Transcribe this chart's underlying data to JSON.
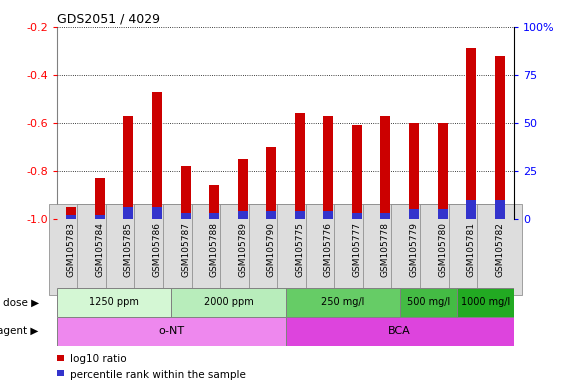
{
  "title": "GDS2051 / 4029",
  "samples": [
    "GSM105783",
    "GSM105784",
    "GSM105785",
    "GSM105786",
    "GSM105787",
    "GSM105788",
    "GSM105789",
    "GSM105790",
    "GSM105775",
    "GSM105776",
    "GSM105777",
    "GSM105778",
    "GSM105779",
    "GSM105780",
    "GSM105781",
    "GSM105782"
  ],
  "log10_ratio": [
    -0.95,
    -0.83,
    -0.57,
    -0.47,
    -0.78,
    -0.86,
    -0.75,
    -0.7,
    -0.56,
    -0.57,
    -0.61,
    -0.57,
    -0.6,
    -0.6,
    -0.29,
    -0.32
  ],
  "percentile_rank": [
    2,
    2,
    6,
    6,
    3,
    3,
    4,
    4,
    4,
    4,
    3,
    3,
    5,
    5,
    10,
    10
  ],
  "bar_color": "#cc0000",
  "percentile_color": "#3333cc",
  "ylim_left": [
    -1.0,
    -0.2
  ],
  "ylim_right": [
    0,
    100
  ],
  "yticks_left": [
    -1.0,
    -0.8,
    -0.6,
    -0.4,
    -0.2
  ],
  "yticks_right": [
    0,
    25,
    50,
    75,
    100
  ],
  "ytick_labels_right": [
    "0",
    "25",
    "50",
    "75",
    "100%"
  ],
  "dose_groups": [
    {
      "label": "1250 ppm",
      "start": 0,
      "end": 4,
      "color": "#d4f7d4"
    },
    {
      "label": "2000 ppm",
      "start": 4,
      "end": 8,
      "color": "#b8edbb"
    },
    {
      "label": "250 mg/l",
      "start": 8,
      "end": 12,
      "color": "#66cc66"
    },
    {
      "label": "500 mg/l",
      "start": 12,
      "end": 14,
      "color": "#44bb44"
    },
    {
      "label": "1000 mg/l",
      "start": 14,
      "end": 16,
      "color": "#22aa22"
    }
  ],
  "agent_groups": [
    {
      "label": "o-NT",
      "start": 0,
      "end": 8,
      "color": "#ee88ee"
    },
    {
      "label": "BCA",
      "start": 8,
      "end": 16,
      "color": "#dd44dd"
    }
  ],
  "legend_items": [
    {
      "color": "#cc0000",
      "label": "log10 ratio"
    },
    {
      "color": "#3333cc",
      "label": "percentile rank within the sample"
    }
  ],
  "dose_label": "dose",
  "agent_label": "agent",
  "bar_width": 0.35,
  "bg_color": "#ffffff",
  "plot_bg": "#ffffff",
  "tick_label_bg": "#dddddd",
  "grid_color": "#000000",
  "grid_linestyle": ":"
}
